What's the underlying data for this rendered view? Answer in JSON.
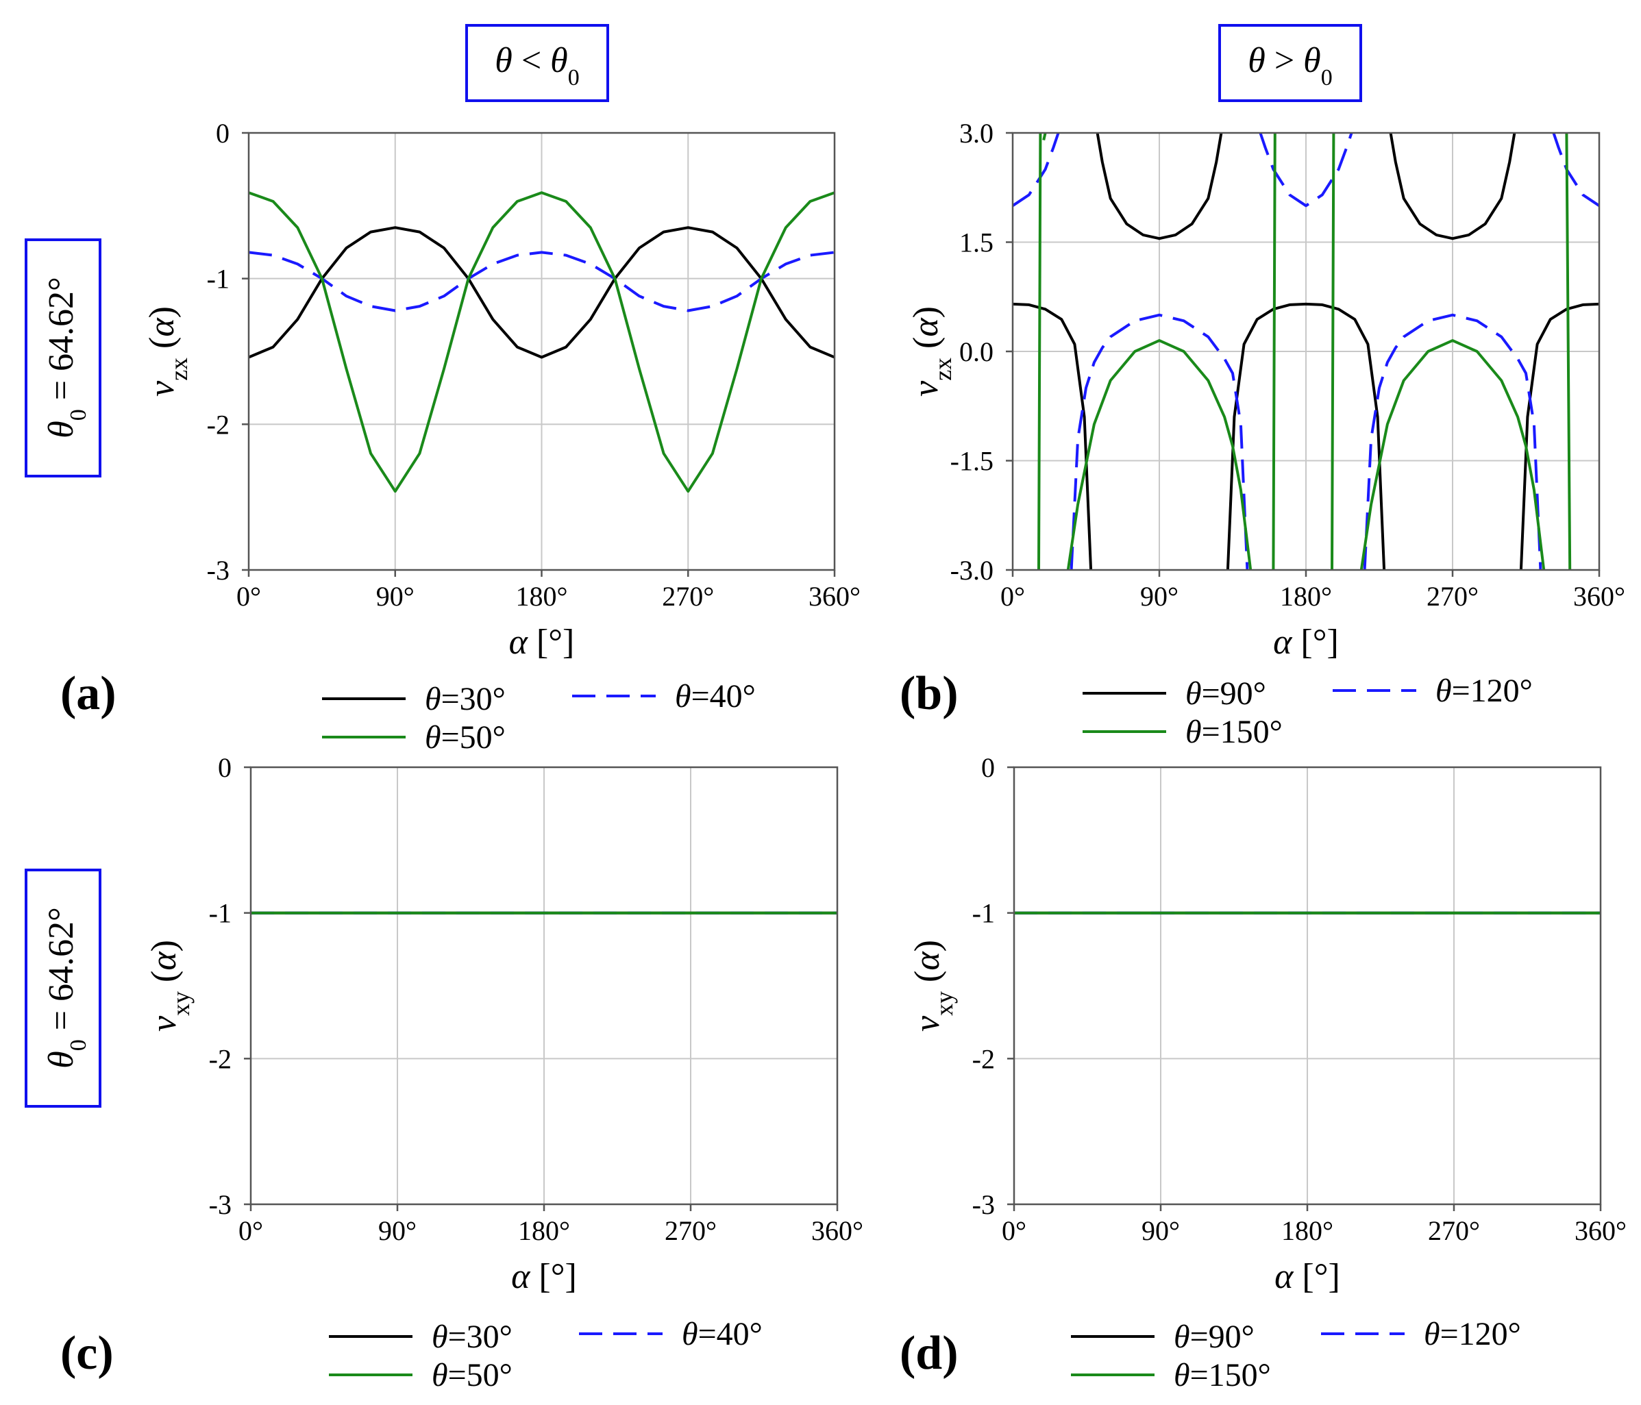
{
  "figure": {
    "column_headers": [
      "θ < θ0",
      "θ > θ0"
    ],
    "row_labels": [
      "θ0 = 64.62°",
      "θ0 = 64.62°"
    ],
    "panel_letters": [
      "(a)",
      "(b)",
      "(c)",
      "(d)"
    ]
  },
  "colors": {
    "black": "#000000",
    "blue": "#1a1aff",
    "green": "#1a8a1a",
    "grid": "#c8c8c8",
    "box": "#1010ee"
  },
  "chart_data": [
    {
      "panel": "(a)",
      "type": "line",
      "xlabel": "α [°]",
      "ylabel": "νzx (α)",
      "xlim": [
        0,
        360
      ],
      "ylim": [
        -3,
        0
      ],
      "xticks": [
        0,
        90,
        180,
        270,
        360
      ],
      "xtick_labels": [
        "0°",
        "90°",
        "180°",
        "270°",
        "360°"
      ],
      "yticks": [
        -3,
        -2,
        -1,
        0
      ],
      "ytick_labels": [
        "-3",
        "-2",
        "-1",
        "0"
      ],
      "x": [
        0,
        15,
        30,
        45,
        60,
        75,
        90,
        105,
        120,
        135,
        150,
        165,
        180,
        195,
        210,
        225,
        240,
        255,
        270,
        285,
        300,
        315,
        330,
        345,
        360
      ],
      "series": [
        {
          "name": "θ=30°",
          "color": "black",
          "dash": "solid",
          "values": [
            -1.54,
            -1.47,
            -1.28,
            -1.0,
            -0.79,
            -0.68,
            -0.65,
            -0.68,
            -0.79,
            -1.0,
            -1.28,
            -1.47,
            -1.54,
            -1.47,
            -1.28,
            -1.0,
            -0.79,
            -0.68,
            -0.65,
            -0.68,
            -0.79,
            -1.0,
            -1.28,
            -1.47,
            -1.54
          ]
        },
        {
          "name": "θ=40°",
          "color": "blue",
          "dash": "dashed",
          "values": [
            -0.82,
            -0.84,
            -0.9,
            -1.0,
            -1.12,
            -1.19,
            -1.22,
            -1.19,
            -1.12,
            -1.0,
            -0.9,
            -0.84,
            -0.82,
            -0.84,
            -0.9,
            -1.0,
            -1.12,
            -1.19,
            -1.22,
            -1.19,
            -1.12,
            -1.0,
            -0.9,
            -0.84,
            -0.82
          ]
        },
        {
          "name": "θ=50°",
          "color": "green",
          "dash": "solid",
          "values": [
            -0.41,
            -0.47,
            -0.65,
            -1.0,
            -1.62,
            -2.2,
            -2.46,
            -2.2,
            -1.62,
            -1.0,
            -0.65,
            -0.47,
            -0.41,
            -0.47,
            -0.65,
            -1.0,
            -1.62,
            -2.2,
            -2.46,
            -2.2,
            -1.62,
            -1.0,
            -0.65,
            -0.47,
            -0.41
          ]
        }
      ],
      "legend": [
        "θ=30°",
        "θ=40°",
        "θ=50°"
      ]
    },
    {
      "panel": "(b)",
      "type": "line",
      "xlabel": "α [°]",
      "ylabel": "νzx (α)",
      "xlim": [
        0,
        360
      ],
      "ylim": [
        -3,
        3
      ],
      "xticks": [
        0,
        90,
        180,
        270,
        360
      ],
      "xtick_labels": [
        "0°",
        "90°",
        "180°",
        "270°",
        "360°"
      ],
      "yticks": [
        -3,
        -1.5,
        0,
        1.5,
        3
      ],
      "ytick_labels": [
        "-3.0",
        "-1.5",
        "0.0",
        "1.5",
        "3.0"
      ],
      "series": [
        {
          "name": "θ=90°",
          "color": "black",
          "dash": "solid",
          "segments": [
            {
              "x": [
                0,
                10,
                20,
                30,
                38,
                44,
                48
              ],
              "y": [
                0.65,
                0.64,
                0.58,
                0.44,
                0.1,
                -0.9,
                -3.0
              ]
            },
            {
              "x": [
                52,
                55,
                60,
                70,
                80,
                90,
                100,
                110,
                120,
                125,
                128
              ],
              "y": [
                3.0,
                2.6,
                2.1,
                1.75,
                1.6,
                1.55,
                1.6,
                1.75,
                2.1,
                2.6,
                3.0
              ]
            },
            {
              "x": [
                132,
                136,
                142,
                150,
                160,
                170,
                180,
                190,
                200,
                210,
                218,
                224,
                228
              ],
              "y": [
                -3.0,
                -0.9,
                0.1,
                0.44,
                0.58,
                0.64,
                0.65,
                0.64,
                0.58,
                0.44,
                0.1,
                -0.9,
                -3.0
              ]
            },
            {
              "x": [
                232,
                235,
                240,
                250,
                260,
                270,
                280,
                290,
                300,
                305,
                308
              ],
              "y": [
                3.0,
                2.6,
                2.1,
                1.75,
                1.6,
                1.55,
                1.6,
                1.75,
                2.1,
                2.6,
                3.0
              ]
            },
            {
              "x": [
                312,
                316,
                322,
                330,
                340,
                350,
                360
              ],
              "y": [
                -3.0,
                -0.9,
                0.1,
                0.44,
                0.58,
                0.64,
                0.65
              ]
            }
          ]
        },
        {
          "name": "θ=120°",
          "color": "blue",
          "dash": "dashed",
          "segments": [
            {
              "x": [
                0,
                10,
                20,
                25,
                28
              ],
              "y": [
                2.0,
                2.15,
                2.5,
                2.8,
                3.0
              ]
            },
            {
              "x": [
                36,
                40,
                45,
                50,
                55,
                60,
                75,
                90,
                105,
                120,
                130,
                135,
                140,
                144
              ],
              "y": [
                -3.0,
                -1.2,
                -0.5,
                -0.15,
                0.05,
                0.2,
                0.42,
                0.5,
                0.42,
                0.2,
                -0.1,
                -0.3,
                -1.0,
                -3.0
              ]
            },
            {
              "x": [
                152,
                155,
                160,
                170,
                180,
                190,
                200,
                205,
                208
              ],
              "y": [
                3.0,
                2.8,
                2.5,
                2.15,
                2.0,
                2.15,
                2.5,
                2.8,
                3.0
              ]
            },
            {
              "x": [
                216,
                220,
                225,
                230,
                235,
                240,
                255,
                270,
                285,
                300,
                310,
                315,
                320,
                324
              ],
              "y": [
                -3.0,
                -1.2,
                -0.5,
                -0.15,
                0.05,
                0.2,
                0.42,
                0.5,
                0.42,
                0.2,
                -0.1,
                -0.3,
                -1.0,
                -3.0
              ]
            },
            {
              "x": [
                332,
                335,
                340,
                350,
                360
              ],
              "y": [
                3.0,
                2.8,
                2.5,
                2.15,
                2.0
              ]
            }
          ]
        },
        {
          "name": "θ=150°",
          "color": "green",
          "dash": "solid",
          "segments": [
            {
              "x": [
                16,
                16.5,
                17
              ],
              "y": [
                -3.0,
                0.0,
                3.0
              ]
            },
            {
              "x": [
                19,
                20
              ],
              "y": [
                2.9,
                3.0
              ]
            },
            {
              "x": [
                34,
                40,
                50,
                60,
                75,
                90,
                105,
                120,
                130,
                135,
                140,
                146
              ],
              "y": [
                -3.0,
                -2.1,
                -1.0,
                -0.4,
                0.0,
                0.15,
                0.0,
                -0.4,
                -0.9,
                -1.3,
                -1.9,
                -3.0
              ]
            },
            {
              "x": [
                160,
                160.5,
                161
              ],
              "y": [
                -3.0,
                0.0,
                3.0
              ]
            },
            {
              "x": [
                196,
                196.5,
                197
              ],
              "y": [
                -3.0,
                0.0,
                3.0
              ]
            },
            {
              "x": [
                214,
                220,
                230,
                240,
                255,
                270,
                285,
                300,
                310,
                315,
                320,
                326
              ],
              "y": [
                -3.0,
                -2.1,
                -1.0,
                -0.4,
                0.0,
                0.15,
                0.0,
                -0.4,
                -0.9,
                -1.3,
                -1.9,
                -3.0
              ]
            },
            {
              "x": [
                340,
                341,
                342
              ],
              "y": [
                3.0,
                0.0,
                -3.0
              ]
            }
          ]
        }
      ],
      "legend": [
        "θ=90°",
        "θ=120°",
        "θ=150°"
      ]
    },
    {
      "panel": "(c)",
      "type": "line",
      "xlabel": "α [°]",
      "ylabel": "νxy (α)",
      "xlim": [
        0,
        360
      ],
      "ylim": [
        -3,
        0
      ],
      "xticks": [
        0,
        90,
        180,
        270,
        360
      ],
      "xtick_labels": [
        "0°",
        "90°",
        "180°",
        "270°",
        "360°"
      ],
      "yticks": [
        -3,
        -2,
        -1,
        0
      ],
      "ytick_labels": [
        "-3",
        "-2",
        "-1",
        "0"
      ],
      "x": [
        0,
        90,
        180,
        270,
        360
      ],
      "series": [
        {
          "name": "θ=30°",
          "color": "black",
          "dash": "solid",
          "values": [
            -1,
            -1,
            -1,
            -1,
            -1
          ]
        },
        {
          "name": "θ=40°",
          "color": "blue",
          "dash": "dashed",
          "values": [
            -1,
            -1,
            -1,
            -1,
            -1
          ]
        },
        {
          "name": "θ=50°",
          "color": "green",
          "dash": "solid",
          "values": [
            -1,
            -1,
            -1,
            -1,
            -1
          ]
        }
      ],
      "legend": [
        "θ=30°",
        "θ=40°",
        "θ=50°"
      ]
    },
    {
      "panel": "(d)",
      "type": "line",
      "xlabel": "α [°]",
      "ylabel": "νxy (α)",
      "xlim": [
        0,
        360
      ],
      "ylim": [
        -3,
        0
      ],
      "xticks": [
        0,
        90,
        180,
        270,
        360
      ],
      "xtick_labels": [
        "0°",
        "90°",
        "180°",
        "270°",
        "360°"
      ],
      "yticks": [
        -3,
        -2,
        -1,
        0
      ],
      "ytick_labels": [
        "-3",
        "-2",
        "-1",
        "0"
      ],
      "x": [
        0,
        90,
        180,
        270,
        360
      ],
      "series": [
        {
          "name": "θ=90°",
          "color": "black",
          "dash": "solid",
          "values": [
            -1,
            -1,
            -1,
            -1,
            -1
          ]
        },
        {
          "name": "θ=120°",
          "color": "blue",
          "dash": "dashed",
          "values": [
            -1,
            -1,
            -1,
            -1,
            -1
          ]
        },
        {
          "name": "θ=150°",
          "color": "green",
          "dash": "solid",
          "values": [
            -1,
            -1,
            -1,
            -1,
            -1
          ]
        }
      ],
      "legend": [
        "θ=90°",
        "θ=120°",
        "θ=150°"
      ]
    }
  ]
}
